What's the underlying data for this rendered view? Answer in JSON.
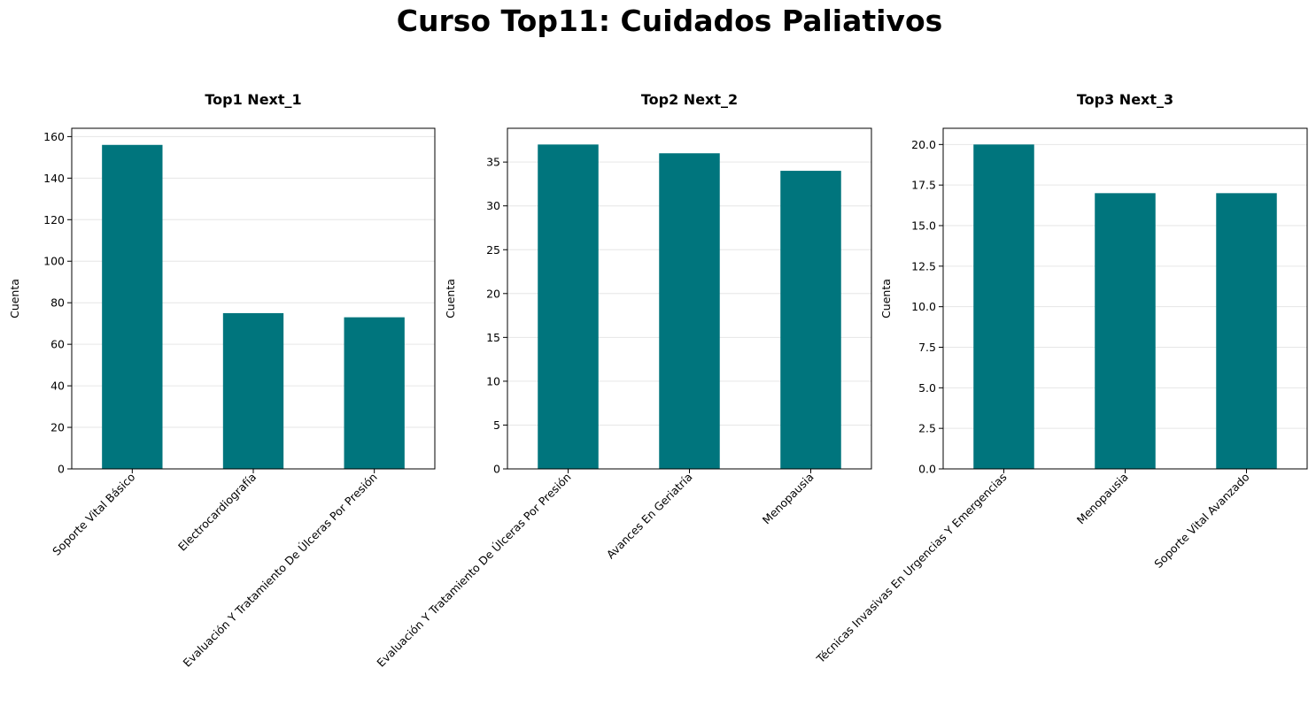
{
  "figure": {
    "title": "Curso Top11: Cuidados Paliativos"
  },
  "colors": {
    "bar": "#00757d",
    "grid": "#e6e6e6",
    "axis": "#000000"
  },
  "chart_data": [
    {
      "type": "bar",
      "title": "Top1 Next_1",
      "xlabel": "",
      "ylabel": "Cuenta",
      "categories": [
        "Soporte Vital Básico",
        "Electrocardiografía",
        "Evaluación Y Tratamiento De Úlceras Por Presión"
      ],
      "values": [
        156,
        75,
        73
      ],
      "ylim": [
        0,
        164
      ],
      "yticks": [
        0,
        20,
        40,
        60,
        80,
        100,
        120,
        140,
        160
      ],
      "ytick_labels": [
        "0",
        "20",
        "40",
        "60",
        "80",
        "100",
        "120",
        "140",
        "160"
      ],
      "grid": "y"
    },
    {
      "type": "bar",
      "title": "Top2 Next_2",
      "xlabel": "",
      "ylabel": "Cuenta",
      "categories": [
        "Evaluación Y Tratamiento De Úlceras Por Presión",
        "Avances En Geriatría",
        "Menopausia"
      ],
      "values": [
        37,
        36,
        34
      ],
      "ylim": [
        0,
        38.85
      ],
      "yticks": [
        0,
        5,
        10,
        15,
        20,
        25,
        30,
        35
      ],
      "ytick_labels": [
        "0",
        "5",
        "10",
        "15",
        "20",
        "25",
        "30",
        "35"
      ],
      "grid": "y"
    },
    {
      "type": "bar",
      "title": "Top3 Next_3",
      "xlabel": "",
      "ylabel": "Cuenta",
      "categories": [
        "Técnicas Invasivas En Urgencias Y Emergencias",
        "Menopausia",
        "Soporte Vital Avanzado"
      ],
      "values": [
        20,
        17,
        17
      ],
      "ylim": [
        0,
        21
      ],
      "yticks": [
        0,
        2.5,
        5,
        7.5,
        10,
        12.5,
        15,
        17.5,
        20
      ],
      "ytick_labels": [
        "0.0",
        "2.5",
        "5.0",
        "7.5",
        "10.0",
        "12.5",
        "15.0",
        "17.5",
        "20.0"
      ],
      "grid": "y"
    }
  ]
}
